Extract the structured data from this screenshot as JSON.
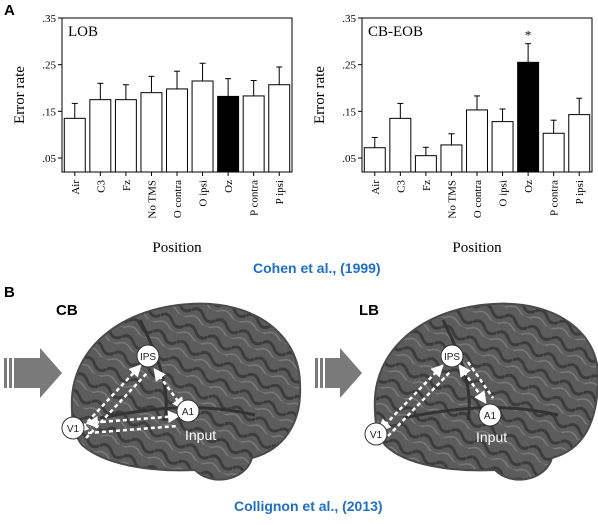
{
  "panel_a_label": "A",
  "panel_b_label": "B",
  "citation_a": "Cohen et al., (1999)",
  "citation_b": "Collignon et al., (2013)",
  "chart_data": [
    {
      "type": "bar",
      "title": "LOB",
      "xlabel": "Position",
      "ylabel": "Error rate",
      "ylim": [
        0.02,
        0.35
      ],
      "yticks": [
        ".05",
        ".15",
        ".25",
        ".35"
      ],
      "categories": [
        "Air",
        "C3",
        "Fz",
        "No TMS",
        "O contra",
        "O ipsi",
        "Oz",
        "P contra",
        "P ipsi"
      ],
      "values": [
        0.135,
        0.175,
        0.175,
        0.19,
        0.198,
        0.215,
        0.182,
        0.183,
        0.207
      ],
      "errors": [
        0.032,
        0.035,
        0.032,
        0.035,
        0.038,
        0.038,
        0.038,
        0.033,
        0.038
      ],
      "highlight": [
        false,
        false,
        false,
        false,
        false,
        false,
        true,
        false,
        false
      ],
      "colors": {
        "bar": "#ffffff",
        "highlight": "#000000"
      }
    },
    {
      "type": "bar",
      "title": "CB-EOB",
      "xlabel": "Position",
      "ylabel": "Error rate",
      "ylim": [
        0.02,
        0.35
      ],
      "yticks": [
        ".05",
        ".15",
        ".25",
        ".35"
      ],
      "categories": [
        "Air",
        "C3",
        "Fz",
        "No TMS",
        "O contra",
        "O ipsi",
        "Oz",
        "P contra",
        "P ipsi"
      ],
      "values": [
        0.072,
        0.135,
        0.055,
        0.078,
        0.153,
        0.128,
        0.255,
        0.103,
        0.143
      ],
      "errors": [
        0.022,
        0.032,
        0.018,
        0.024,
        0.03,
        0.027,
        0.04,
        0.028,
        0.035
      ],
      "highlight": [
        false,
        false,
        false,
        false,
        false,
        false,
        true,
        false,
        false
      ],
      "annotation": "*",
      "colors": {
        "bar": "#ffffff",
        "highlight": "#000000"
      }
    }
  ],
  "brains": [
    {
      "label": "CB",
      "nodes": {
        "ips": "IPS",
        "v1": "V1",
        "a1": "A1"
      },
      "input_label": "Input"
    },
    {
      "label": "LB",
      "nodes": {
        "ips": "IPS",
        "v1": "V1",
        "a1": "A1"
      },
      "input_label": "Input"
    }
  ],
  "colors": {
    "citation": "#1f6fc6",
    "arrow": "#7a7a7a",
    "brain": "#5a5a5a"
  }
}
